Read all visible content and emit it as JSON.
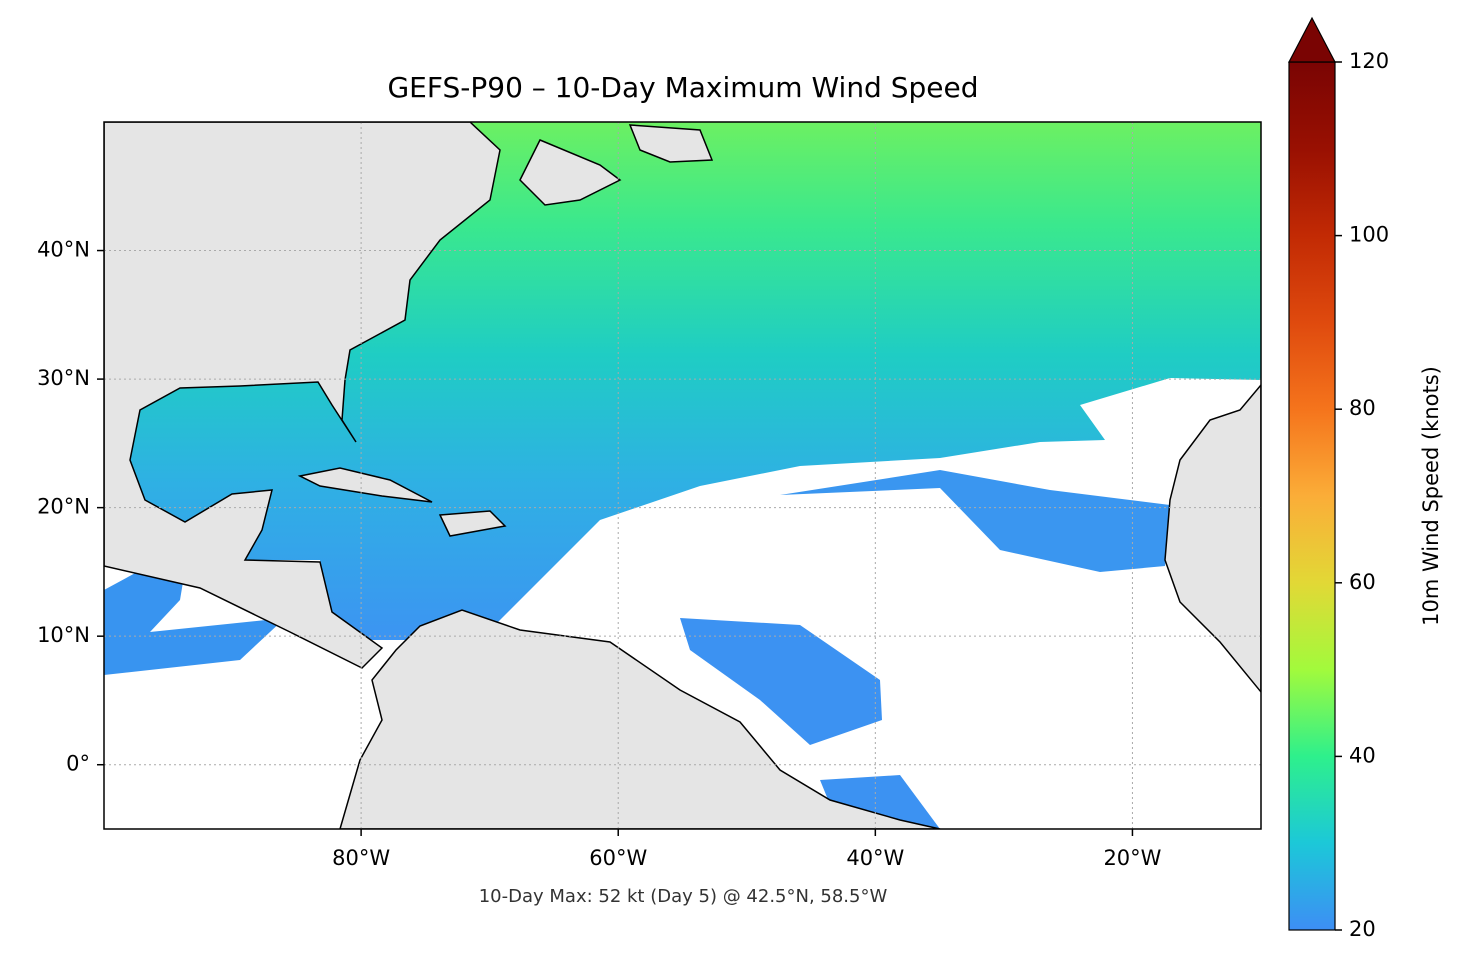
{
  "chart_data": {
    "type": "map",
    "title": "GEFS-P90 – 10-Day Maximum Wind Speed",
    "annotation": "10-Day Max: 52 kt (Day 5) @ 42.5°N, 58.5°W",
    "xlim": [
      -100,
      -10
    ],
    "ylim": [
      -5,
      50
    ],
    "xticks": [
      {
        "value": -80,
        "label": "80°W"
      },
      {
        "value": -60,
        "label": "60°W"
      },
      {
        "value": -40,
        "label": "40°W"
      },
      {
        "value": -20,
        "label": "20°W"
      }
    ],
    "yticks": [
      {
        "value": 0,
        "label": "0°"
      },
      {
        "value": 10,
        "label": "10°N"
      },
      {
        "value": 20,
        "label": "20°N"
      },
      {
        "value": 30,
        "label": "30°N"
      },
      {
        "value": 40,
        "label": "40°N"
      }
    ],
    "grid": true,
    "colorbar": {
      "label": "10m Wind Speed (knots)",
      "lim": [
        20,
        120
      ],
      "ticks": [
        20,
        40,
        60,
        80,
        100,
        120
      ],
      "extend": "max",
      "colors": [
        "#3d8ef5",
        "#1cc8d8",
        "#2ef08c",
        "#a2fa3c",
        "#e2d836",
        "#fbad38",
        "#f5741c",
        "#df4a0e",
        "#c22a04",
        "#991002",
        "#7a0403"
      ]
    }
  }
}
